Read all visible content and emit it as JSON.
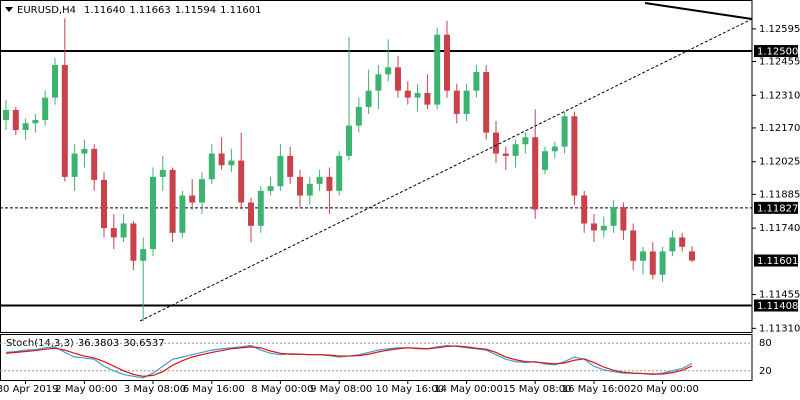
{
  "chart_data": {
    "type": "candlestick",
    "header": {
      "symbol": "EURUSD,H4",
      "values": [
        {
          "value": 1.1164,
          "label": "1.11640"
        },
        {
          "value": 1.11663,
          "label": "1.11663"
        },
        {
          "value": 1.11594,
          "label": "1.11594"
        },
        {
          "value": 1.11601,
          "label": "1.11601"
        }
      ]
    },
    "categories": [
      null,
      null,
      "30 Apr 2019",
      null,
      null,
      null,
      null,
      null,
      "2 May 00:00",
      null,
      null,
      null,
      null,
      null,
      null,
      "3 May 08:00",
      null,
      null,
      null,
      null,
      null,
      "6 May 16:00",
      null,
      null,
      null,
      null,
      null,
      null,
      "8 May 00:00",
      null,
      null,
      null,
      null,
      null,
      "9 May 08:00",
      null,
      null,
      null,
      null,
      null,
      null,
      "10 May 16:00",
      null,
      null,
      null,
      null,
      null,
      "14 May 00:00",
      null,
      null,
      null,
      null,
      null,
      null,
      "15 May 08:00",
      null,
      null,
      null,
      null,
      null,
      "16 May 16:00",
      null,
      null,
      null,
      null,
      null,
      null,
      "20 May 00:00",
      null,
      null,
      null
    ],
    "open": [
      1.12204,
      1.12247,
      1.12161,
      1.1219,
      1.12204,
      1.123,
      1.1244,
      1.1196,
      1.1206,
      1.1208,
      1.11947,
      1.1174,
      1.117,
      1.1176,
      1.116,
      1.1165,
      1.1196,
      1.1199,
      1.1172,
      1.1188,
      1.1185,
      1.1195,
      1.1206,
      1.1201,
      1.1203,
      1.1185,
      1.1175,
      1.119,
      1.1192,
      1.1205,
      1.1196,
      1.1188,
      1.1193,
      1.1196,
      1.119,
      1.1205,
      1.1218,
      1.1226,
      1.1233,
      1.124,
      1.1243,
      1.1233,
      1.123,
      1.1232,
      1.1227,
      1.1257,
      1.1233,
      1.1223,
      1.1233,
      1.1241,
      1.1215,
      1.1206,
      1.1205,
      1.121,
      1.1213,
      1.1199,
      1.1207,
      1.1209,
      1.1222,
      1.1188,
      1.1176,
      1.1173,
      1.1175,
      1.1183,
      1.1173,
      1.116,
      1.1164,
      1.1154,
      1.1164,
      1.117,
      1.1164
    ],
    "high": [
      1.1229,
      1.1226,
      1.1221,
      1.1223,
      1.1233,
      1.1247,
      1.1264,
      1.121,
      1.1212,
      1.121,
      1.1198,
      1.118,
      1.118,
      1.1177,
      1.117,
      1.12,
      1.1205,
      1.12,
      1.119,
      1.1195,
      1.1198,
      1.121,
      1.1213,
      1.1208,
      1.1215,
      1.1187,
      1.1192,
      1.1196,
      1.121,
      1.1209,
      1.1199,
      1.1196,
      1.1199,
      1.12,
      1.1207,
      1.1256,
      1.123,
      1.1242,
      1.1244,
      1.1255,
      1.1248,
      1.1237,
      1.1236,
      1.124,
      1.126,
      1.1263,
      1.1236,
      1.1236,
      1.1244,
      1.1244,
      1.122,
      1.1209,
      1.1212,
      1.1215,
      1.1225,
      1.1209,
      1.1211,
      1.1224,
      1.1224,
      1.119,
      1.118,
      1.1179,
      1.1186,
      1.1185,
      1.1176,
      1.1166,
      1.1168,
      1.1166,
      1.1173,
      1.1172,
      1.11663
    ],
    "low": [
      1.12161,
      1.1214,
      1.1212,
      1.1215,
      1.1218,
      1.1227,
      1.1194,
      1.119,
      1.12,
      1.119,
      1.117,
      1.1165,
      1.1168,
      1.1156,
      1.1134,
      1.1162,
      1.119,
      1.1168,
      1.117,
      1.1182,
      1.118,
      1.1193,
      1.1199,
      1.1198,
      1.1182,
      1.1168,
      1.1172,
      1.1188,
      1.119,
      1.1193,
      1.1183,
      1.1184,
      1.119,
      1.118,
      1.1188,
      1.1203,
      1.1215,
      1.1223,
      1.1225,
      1.1237,
      1.123,
      1.1227,
      1.1224,
      1.1225,
      1.1225,
      1.123,
      1.1219,
      1.122,
      1.123,
      1.1212,
      1.1202,
      1.1199,
      1.12,
      1.1206,
      1.1178,
      1.1197,
      1.1204,
      1.1206,
      1.1184,
      1.1172,
      1.1168,
      1.117,
      1.1172,
      1.1169,
      1.1156,
      1.1154,
      1.1152,
      1.1151,
      1.1162,
      1.1164,
      1.11594
    ],
    "close": [
      1.12247,
      1.12161,
      1.1219,
      1.12204,
      1.123,
      1.1244,
      1.1196,
      1.1206,
      1.1208,
      1.11947,
      1.1174,
      1.117,
      1.1176,
      1.116,
      1.1165,
      1.1196,
      1.1199,
      1.1172,
      1.1188,
      1.1185,
      1.1195,
      1.1206,
      1.1201,
      1.1203,
      1.1185,
      1.1175,
      1.119,
      1.1192,
      1.1205,
      1.1196,
      1.1188,
      1.1193,
      1.1196,
      1.119,
      1.1205,
      1.1218,
      1.1226,
      1.1233,
      1.124,
      1.1243,
      1.1233,
      1.123,
      1.1232,
      1.1227,
      1.1257,
      1.1233,
      1.1223,
      1.1233,
      1.1241,
      1.1215,
      1.1206,
      1.1205,
      1.121,
      1.1213,
      1.1182,
      1.1207,
      1.1209,
      1.1222,
      1.1188,
      1.1176,
      1.1173,
      1.1175,
      1.1183,
      1.1173,
      1.116,
      1.1164,
      1.1154,
      1.1164,
      1.117,
      1.1166,
      1.11601
    ],
    "up_color": "#3cb371",
    "down_color": "#c8414b",
    "ylim": [
      1.1129,
      1.12719
    ],
    "yticks": [
      1.12595,
      1.12455,
      {
        "value": 1.1231,
        "label": "1.12310"
      },
      {
        "value": 1.1217,
        "label": "1.12170"
      },
      1.12025,
      1.11885,
      {
        "value": 1.1174,
        "label": "1.11740"
      },
      1.11455,
      {
        "value": 1.1131,
        "label": "1.11310"
      }
    ],
    "levels": [
      {
        "value": 1.125,
        "label": "1.12500",
        "style": "solid"
      },
      {
        "value": 1.11827,
        "label": "1.11827",
        "style": "dashed"
      },
      {
        "value": 1.11408,
        "label": "1.11408",
        "style": "solid"
      }
    ],
    "stoch": {
      "label": "Stoch(14,3,3)",
      "ylim": [
        0,
        100
      ],
      "yticks": [
        80,
        20
      ],
      "series": [
        {
          "name": "Main",
          "color": "#3c9fd0",
          "values": [
            60,
            62,
            65,
            66,
            70,
            72,
            60,
            50,
            48,
            45,
            30,
            20,
            12,
            8,
            5,
            15,
            30,
            45,
            50,
            55,
            60,
            65,
            68,
            70,
            72,
            75,
            65,
            58,
            55,
            57,
            56,
            55,
            55,
            53,
            50,
            52,
            55,
            60,
            65,
            68,
            70,
            70,
            68,
            68,
            72,
            75,
            73,
            70,
            68,
            65,
            55,
            45,
            40,
            38,
            40,
            35,
            33,
            40,
            50,
            45,
            30,
            22,
            18,
            15,
            15,
            14,
            12,
            15,
            20,
            25,
            36.3803
          ]
        },
        {
          "name": "Signal",
          "color": "#dd1111",
          "values": [
            58,
            60,
            62,
            64,
            67,
            69,
            65,
            58,
            52,
            48,
            40,
            30,
            20,
            12,
            8,
            10,
            18,
            32,
            42,
            50,
            55,
            60,
            64,
            68,
            70,
            72,
            70,
            63,
            58,
            56,
            56,
            55,
            55,
            54,
            52,
            52,
            53,
            56,
            61,
            65,
            68,
            70,
            69,
            68,
            70,
            73,
            74,
            72,
            69,
            67,
            60,
            50,
            44,
            40,
            39,
            37,
            35,
            37,
            43,
            46,
            38,
            28,
            21,
            17,
            15,
            14,
            13,
            13,
            16,
            21,
            30.6537
          ]
        }
      ]
    }
  }
}
